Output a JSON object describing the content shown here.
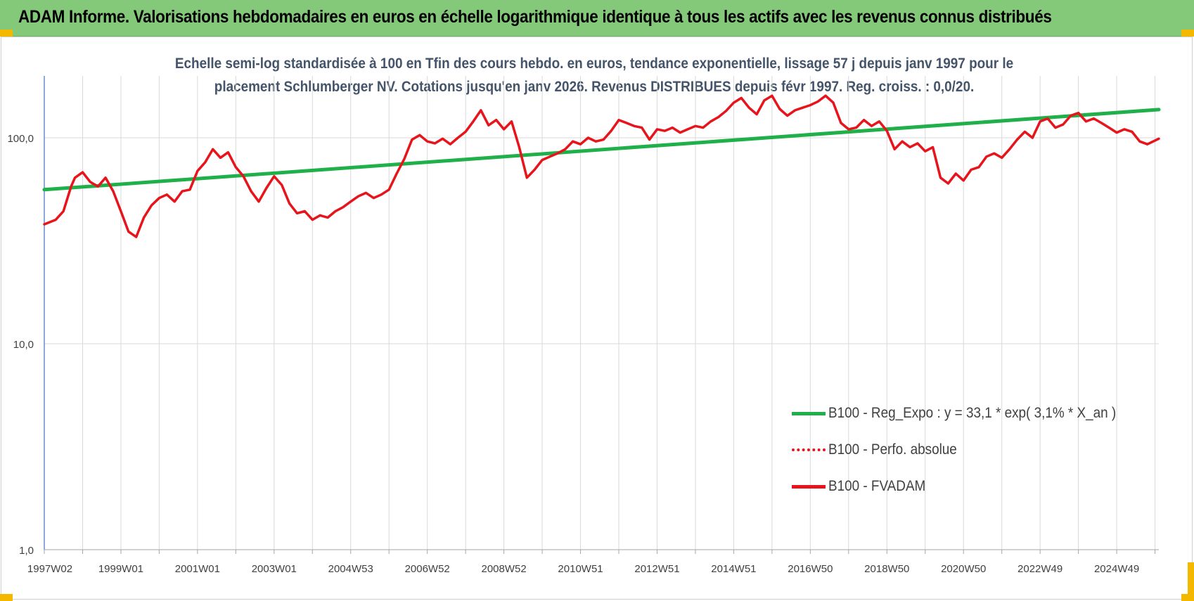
{
  "header": {
    "title": "ADAM Informe. Valorisations hebdomadaires en euros en échelle logarithmique identique à tous les actifs avec les revenus connus distribués"
  },
  "chart_data": {
    "type": "line",
    "subtitle_line1": "Echelle semi-log standardisée à 100 en Tfin des cours hebdo. en euros, tendance exponentielle, lissage 57 j depuis janv 1997 pour le",
    "subtitle_line2": "placement Schlumberger NV. Cotations jusqu'en janv 2026. Revenus DISTRIBUES depuis févr 1997. Reg. croiss. : 0,0/20.",
    "y_scale": "log",
    "ylim": [
      1,
      200
    ],
    "y_ticks": [
      {
        "value": 1,
        "label": "1,0"
      },
      {
        "value": 10,
        "label": "10,0"
      },
      {
        "value": 100,
        "label": "100,0"
      }
    ],
    "xlim": [
      1997.0,
      2026.1
    ],
    "x_ticks": [
      {
        "x": 1997.0,
        "label": "1997W02"
      },
      {
        "x": 1999.0,
        "label": "1999W01"
      },
      {
        "x": 2001.0,
        "label": "2001W01"
      },
      {
        "x": 2003.0,
        "label": "2003W01"
      },
      {
        "x": 2005.0,
        "label": "2004W53"
      },
      {
        "x": 2007.0,
        "label": "2006W52"
      },
      {
        "x": 2009.0,
        "label": "2008W52"
      },
      {
        "x": 2011.0,
        "label": "2010W51"
      },
      {
        "x": 2013.0,
        "label": "2012W51"
      },
      {
        "x": 2015.0,
        "label": "2014W51"
      },
      {
        "x": 2017.0,
        "label": "2016W50"
      },
      {
        "x": 2019.0,
        "label": "2018W50"
      },
      {
        "x": 2021.0,
        "label": "2020W50"
      },
      {
        "x": 2023.0,
        "label": "2022W49"
      },
      {
        "x": 2025.0,
        "label": "2024W49"
      }
    ],
    "grid": true,
    "legend_position": "bottom-right",
    "series": [
      {
        "name": "B100 - Reg_Expo : y = 33,1 * exp( 3,1% *  X_an )",
        "color": "#1fb04a",
        "style": "solid",
        "points": [
          [
            1997.0,
            56
          ],
          [
            2026.1,
            137
          ]
        ]
      },
      {
        "name": "B100 - Perfo. absolue",
        "color": "#e8141b",
        "style": "dotted",
        "points": []
      },
      {
        "name": "B100 - FVADAM",
        "color": "#e8141b",
        "style": "solid",
        "points": [
          [
            1997.0,
            38
          ],
          [
            1997.3,
            40
          ],
          [
            1997.5,
            44
          ],
          [
            1997.7,
            58
          ],
          [
            1997.8,
            64
          ],
          [
            1998.0,
            68
          ],
          [
            1998.2,
            61
          ],
          [
            1998.4,
            58
          ],
          [
            1998.6,
            64
          ],
          [
            1998.8,
            55
          ],
          [
            1999.0,
            44
          ],
          [
            1999.2,
            35
          ],
          [
            1999.4,
            33
          ],
          [
            1999.6,
            41
          ],
          [
            1999.8,
            47
          ],
          [
            2000.0,
            51
          ],
          [
            2000.2,
            53
          ],
          [
            2000.4,
            49
          ],
          [
            2000.6,
            55
          ],
          [
            2000.8,
            56
          ],
          [
            2001.0,
            69
          ],
          [
            2001.2,
            76
          ],
          [
            2001.4,
            88
          ],
          [
            2001.6,
            80
          ],
          [
            2001.8,
            85
          ],
          [
            2002.0,
            72
          ],
          [
            2002.2,
            65
          ],
          [
            2002.4,
            55
          ],
          [
            2002.6,
            49
          ],
          [
            2002.8,
            57
          ],
          [
            2003.0,
            65
          ],
          [
            2003.2,
            59
          ],
          [
            2003.4,
            48
          ],
          [
            2003.6,
            43
          ],
          [
            2003.8,
            44
          ],
          [
            2004.0,
            40
          ],
          [
            2004.2,
            42
          ],
          [
            2004.4,
            41
          ],
          [
            2004.6,
            44
          ],
          [
            2004.8,
            46
          ],
          [
            2005.0,
            49
          ],
          [
            2005.2,
            52
          ],
          [
            2005.4,
            54
          ],
          [
            2005.6,
            51
          ],
          [
            2005.8,
            53
          ],
          [
            2006.0,
            56
          ],
          [
            2006.2,
            67
          ],
          [
            2006.4,
            79
          ],
          [
            2006.6,
            98
          ],
          [
            2006.8,
            103
          ],
          [
            2007.0,
            96
          ],
          [
            2007.2,
            94
          ],
          [
            2007.4,
            99
          ],
          [
            2007.6,
            93
          ],
          [
            2007.8,
            100
          ],
          [
            2008.0,
            107
          ],
          [
            2008.2,
            120
          ],
          [
            2008.4,
            136
          ],
          [
            2008.6,
            115
          ],
          [
            2008.8,
            122
          ],
          [
            2009.0,
            110
          ],
          [
            2009.2,
            120
          ],
          [
            2009.4,
            90
          ],
          [
            2009.6,
            64
          ],
          [
            2009.8,
            70
          ],
          [
            2010.0,
            78
          ],
          [
            2010.2,
            81
          ],
          [
            2010.4,
            84
          ],
          [
            2010.6,
            88
          ],
          [
            2010.8,
            96
          ],
          [
            2011.0,
            93
          ],
          [
            2011.2,
            100
          ],
          [
            2011.4,
            96
          ],
          [
            2011.6,
            98
          ],
          [
            2011.8,
            108
          ],
          [
            2012.0,
            122
          ],
          [
            2012.2,
            118
          ],
          [
            2012.4,
            114
          ],
          [
            2012.6,
            112
          ],
          [
            2012.8,
            98
          ],
          [
            2013.0,
            110
          ],
          [
            2013.2,
            108
          ],
          [
            2013.4,
            112
          ],
          [
            2013.6,
            106
          ],
          [
            2013.8,
            110
          ],
          [
            2014.0,
            114
          ],
          [
            2014.2,
            112
          ],
          [
            2014.4,
            120
          ],
          [
            2014.6,
            126
          ],
          [
            2014.8,
            135
          ],
          [
            2015.0,
            148
          ],
          [
            2015.2,
            156
          ],
          [
            2015.4,
            140
          ],
          [
            2015.6,
            130
          ],
          [
            2015.8,
            152
          ],
          [
            2016.0,
            160
          ],
          [
            2016.2,
            138
          ],
          [
            2016.4,
            128
          ],
          [
            2016.6,
            136
          ],
          [
            2016.8,
            140
          ],
          [
            2017.0,
            144
          ],
          [
            2017.2,
            150
          ],
          [
            2017.4,
            160
          ],
          [
            2017.6,
            148
          ],
          [
            2017.8,
            118
          ],
          [
            2018.0,
            110
          ],
          [
            2018.2,
            112
          ],
          [
            2018.4,
            122
          ],
          [
            2018.6,
            114
          ],
          [
            2018.8,
            120
          ],
          [
            2019.0,
            108
          ],
          [
            2019.2,
            88
          ],
          [
            2019.4,
            96
          ],
          [
            2019.6,
            90
          ],
          [
            2019.8,
            94
          ],
          [
            2020.0,
            86
          ],
          [
            2020.2,
            90
          ],
          [
            2020.4,
            64
          ],
          [
            2020.6,
            60
          ],
          [
            2020.8,
            67
          ],
          [
            2021.0,
            62
          ],
          [
            2021.2,
            70
          ],
          [
            2021.4,
            72
          ],
          [
            2021.6,
            81
          ],
          [
            2021.8,
            84
          ],
          [
            2022.0,
            80
          ],
          [
            2022.2,
            88
          ],
          [
            2022.4,
            98
          ],
          [
            2022.6,
            107
          ],
          [
            2022.8,
            100
          ],
          [
            2023.0,
            120
          ],
          [
            2023.2,
            124
          ],
          [
            2023.4,
            112
          ],
          [
            2023.6,
            116
          ],
          [
            2023.8,
            128
          ],
          [
            2024.0,
            132
          ],
          [
            2024.2,
            120
          ],
          [
            2024.4,
            124
          ],
          [
            2024.6,
            118
          ],
          [
            2024.8,
            112
          ],
          [
            2025.0,
            106
          ],
          [
            2025.2,
            110
          ],
          [
            2025.4,
            107
          ],
          [
            2025.6,
            96
          ],
          [
            2025.8,
            93
          ],
          [
            2026.1,
            99
          ]
        ]
      }
    ]
  }
}
